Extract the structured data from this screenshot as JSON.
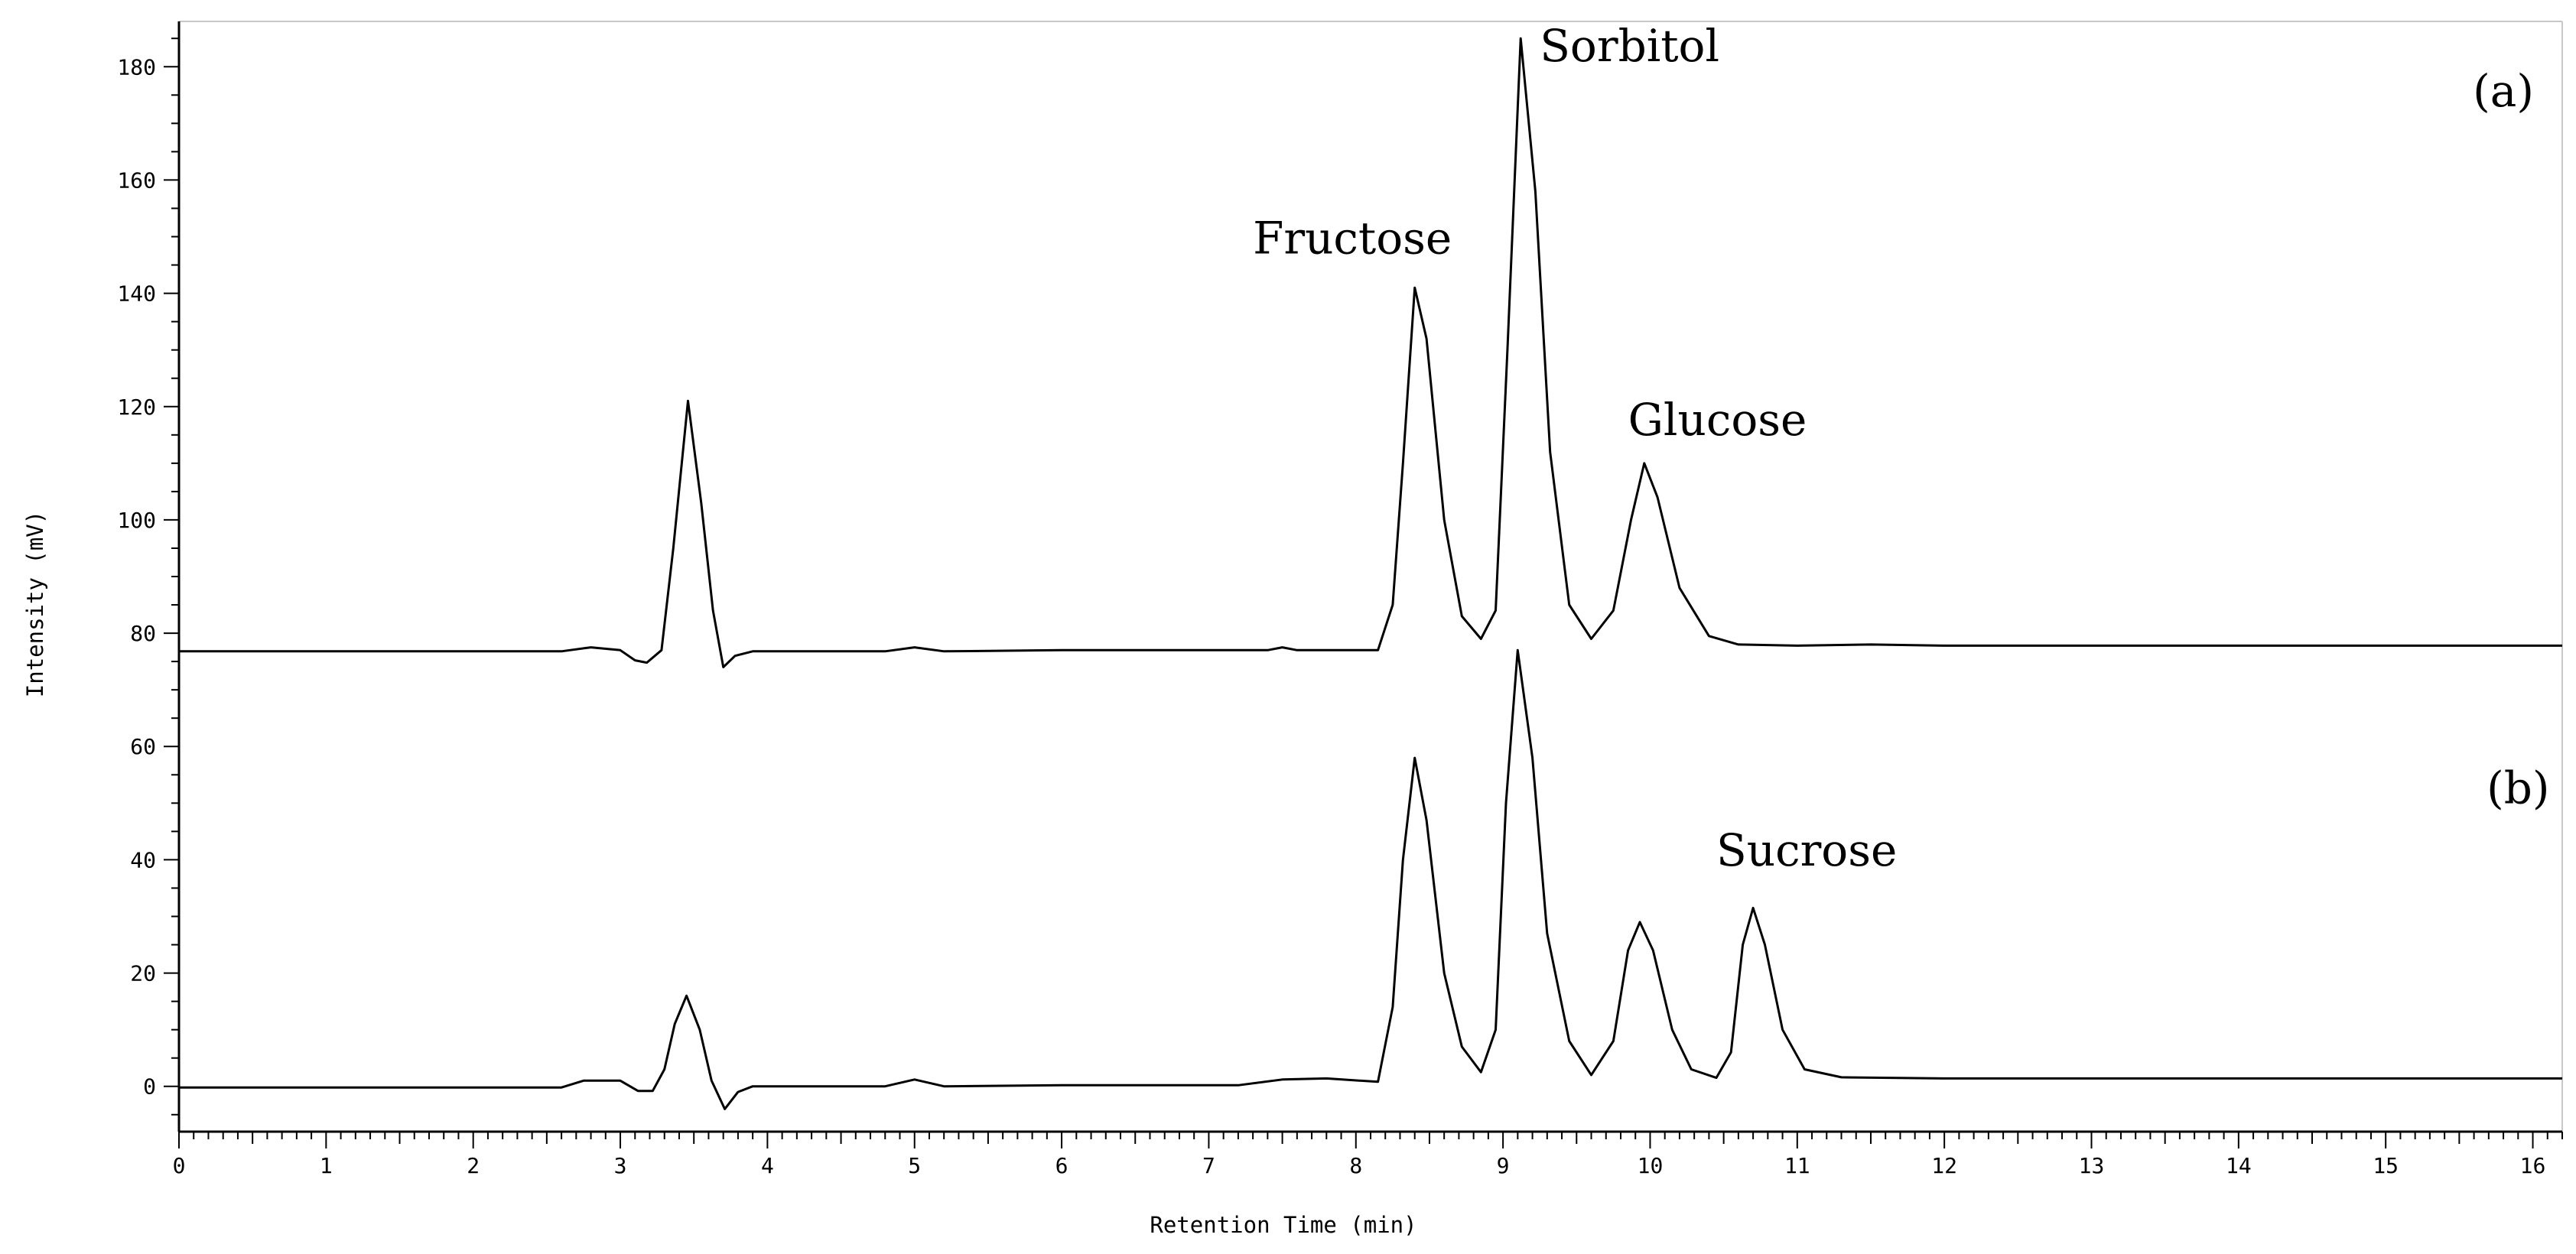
{
  "chart_data": {
    "type": "line",
    "xlabel": "Retention Time (min)",
    "ylabel": "Intensity (mV)",
    "xlim": [
      0,
      16.2
    ],
    "ylim": [
      -8,
      188
    ],
    "x_ticks": [
      "0",
      "1",
      "2",
      "3",
      "4",
      "5",
      "6",
      "7",
      "8",
      "9",
      "10",
      "11",
      "12",
      "13",
      "14",
      "15",
      "16"
    ],
    "y_ticks": [
      "0",
      "20",
      "40",
      "60",
      "80",
      "100",
      "120",
      "140",
      "160",
      "180"
    ],
    "panel_labels": [
      {
        "text": "(a)",
        "x": 15.8,
        "y": 173
      },
      {
        "text": "(b)",
        "x": 15.9,
        "y": 50
      }
    ],
    "annotations": [
      {
        "text": "Sorbitol",
        "x": 9.25,
        "y": 181
      },
      {
        "text": "Fructose",
        "x": 7.3,
        "y": 147
      },
      {
        "text": "Glucose",
        "x": 9.85,
        "y": 115
      },
      {
        "text": "Sucrose",
        "x": 10.45,
        "y": 39
      }
    ],
    "series": [
      {
        "name": "(a)",
        "points": [
          [
            0,
            76.8
          ],
          [
            2.6,
            76.8
          ],
          [
            2.8,
            77.5
          ],
          [
            3.0,
            77
          ],
          [
            3.1,
            75.2
          ],
          [
            3.18,
            74.8
          ],
          [
            3.28,
            77
          ],
          [
            3.36,
            95
          ],
          [
            3.46,
            121
          ],
          [
            3.55,
            103
          ],
          [
            3.63,
            84
          ],
          [
            3.7,
            74
          ],
          [
            3.78,
            76
          ],
          [
            3.9,
            76.8
          ],
          [
            4.8,
            76.8
          ],
          [
            5.0,
            77.5
          ],
          [
            5.2,
            76.8
          ],
          [
            6.0,
            77
          ],
          [
            7.4,
            77
          ],
          [
            7.5,
            77.5
          ],
          [
            7.6,
            77
          ],
          [
            8.15,
            77
          ],
          [
            8.25,
            85
          ],
          [
            8.32,
            110
          ],
          [
            8.4,
            141
          ],
          [
            8.48,
            132
          ],
          [
            8.6,
            100
          ],
          [
            8.72,
            83
          ],
          [
            8.85,
            79
          ],
          [
            8.95,
            84
          ],
          [
            9.03,
            130
          ],
          [
            9.12,
            185
          ],
          [
            9.22,
            158
          ],
          [
            9.32,
            112
          ],
          [
            9.45,
            85
          ],
          [
            9.6,
            79
          ],
          [
            9.75,
            84
          ],
          [
            9.87,
            100
          ],
          [
            9.96,
            110
          ],
          [
            10.05,
            104
          ],
          [
            10.2,
            88
          ],
          [
            10.4,
            79.5
          ],
          [
            10.6,
            78
          ],
          [
            11.0,
            77.8
          ],
          [
            11.5,
            78
          ],
          [
            12.0,
            77.8
          ],
          [
            16.2,
            77.8
          ]
        ]
      },
      {
        "name": "(b)",
        "points": [
          [
            0,
            -0.2
          ],
          [
            2.6,
            -0.2
          ],
          [
            2.75,
            1
          ],
          [
            3.0,
            1
          ],
          [
            3.12,
            -0.8
          ],
          [
            3.22,
            -0.8
          ],
          [
            3.3,
            3
          ],
          [
            3.37,
            11
          ],
          [
            3.45,
            16
          ],
          [
            3.54,
            10
          ],
          [
            3.62,
            1
          ],
          [
            3.71,
            -4
          ],
          [
            3.8,
            -1
          ],
          [
            3.9,
            0
          ],
          [
            4.8,
            0
          ],
          [
            5.0,
            1.2
          ],
          [
            5.2,
            0
          ],
          [
            6.0,
            0.2
          ],
          [
            7.2,
            0.2
          ],
          [
            7.5,
            1.2
          ],
          [
            7.8,
            1.4
          ],
          [
            8.15,
            0.8
          ],
          [
            8.25,
            14
          ],
          [
            8.32,
            40
          ],
          [
            8.4,
            58
          ],
          [
            8.48,
            47
          ],
          [
            8.6,
            20
          ],
          [
            8.72,
            7
          ],
          [
            8.85,
            2.5
          ],
          [
            8.95,
            10
          ],
          [
            9.02,
            50
          ],
          [
            9.1,
            77
          ],
          [
            9.2,
            58
          ],
          [
            9.3,
            27
          ],
          [
            9.45,
            8
          ],
          [
            9.6,
            2
          ],
          [
            9.75,
            8
          ],
          [
            9.85,
            24
          ],
          [
            9.93,
            29
          ],
          [
            10.02,
            24
          ],
          [
            10.15,
            10
          ],
          [
            10.28,
            3
          ],
          [
            10.45,
            1.5
          ],
          [
            10.55,
            6
          ],
          [
            10.63,
            25
          ],
          [
            10.7,
            31.5
          ],
          [
            10.78,
            25
          ],
          [
            10.9,
            10
          ],
          [
            11.05,
            3
          ],
          [
            11.3,
            1.6
          ],
          [
            12.0,
            1.4
          ],
          [
            16.2,
            1.4
          ]
        ]
      }
    ]
  }
}
